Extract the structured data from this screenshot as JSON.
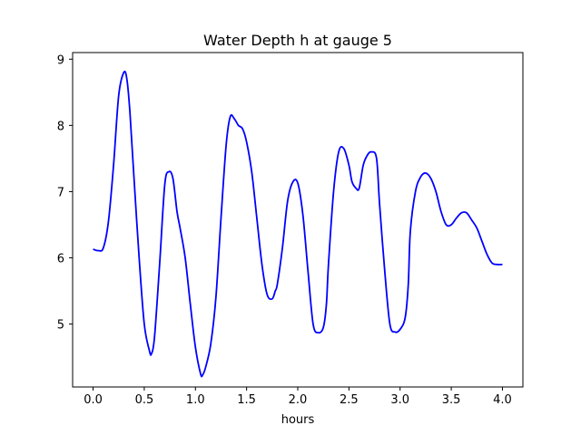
{
  "chart_data": {
    "type": "line",
    "title": "Water Depth h at gauge 5",
    "xlabel": "hours",
    "ylabel": "",
    "xlim": [
      -0.2,
      4.2
    ],
    "ylim": [
      4.05,
      9.1
    ],
    "xticks": [
      0.0,
      0.5,
      1.0,
      1.5,
      2.0,
      2.5,
      3.0,
      3.5,
      4.0
    ],
    "xtick_labels": [
      "0.0",
      "0.5",
      "1.0",
      "1.5",
      "2.0",
      "2.5",
      "3.0",
      "3.5",
      "4.0"
    ],
    "yticks": [
      5,
      6,
      7,
      8,
      9
    ],
    "ytick_labels": [
      "5",
      "6",
      "7",
      "8",
      "9"
    ],
    "grid": false,
    "series": [
      {
        "color": "#0000ff",
        "x": [
          0.0,
          0.05,
          0.1,
          0.15,
          0.2,
          0.25,
          0.3,
          0.33,
          0.36,
          0.4,
          0.45,
          0.5,
          0.55,
          0.57,
          0.6,
          0.65,
          0.7,
          0.74,
          0.78,
          0.82,
          0.85,
          0.9,
          0.95,
          1.0,
          1.05,
          1.07,
          1.1,
          1.15,
          1.2,
          1.25,
          1.3,
          1.34,
          1.38,
          1.42,
          1.46,
          1.5,
          1.55,
          1.6,
          1.65,
          1.7,
          1.75,
          1.78,
          1.8,
          1.85,
          1.9,
          1.95,
          2.0,
          2.05,
          2.1,
          2.15,
          2.2,
          2.25,
          2.28,
          2.3,
          2.35,
          2.4,
          2.45,
          2.5,
          2.53,
          2.57,
          2.6,
          2.64,
          2.68,
          2.72,
          2.77,
          2.8,
          2.85,
          2.9,
          2.95,
          3.0,
          3.05,
          3.08,
          3.1,
          3.15,
          3.2,
          3.25,
          3.3,
          3.35,
          3.4,
          3.45,
          3.5,
          3.55,
          3.6,
          3.65,
          3.7,
          3.75,
          3.8,
          3.85,
          3.9,
          3.95,
          4.0
        ],
        "y": [
          6.13,
          6.11,
          6.15,
          6.55,
          7.4,
          8.45,
          8.8,
          8.7,
          8.2,
          7.2,
          6.0,
          5.0,
          4.6,
          4.55,
          4.8,
          5.9,
          7.1,
          7.3,
          7.2,
          6.7,
          6.45,
          6.0,
          5.3,
          4.65,
          4.25,
          4.23,
          4.35,
          4.7,
          5.4,
          6.6,
          7.7,
          8.13,
          8.1,
          8.0,
          7.95,
          7.75,
          7.3,
          6.6,
          5.9,
          5.45,
          5.38,
          5.5,
          5.6,
          6.15,
          6.85,
          7.14,
          7.13,
          6.65,
          5.8,
          5.0,
          4.87,
          4.95,
          5.3,
          5.9,
          7.0,
          7.6,
          7.65,
          7.4,
          7.15,
          7.05,
          7.05,
          7.4,
          7.55,
          7.6,
          7.5,
          6.8,
          5.8,
          5.0,
          4.88,
          4.92,
          5.1,
          5.6,
          6.4,
          7.0,
          7.22,
          7.28,
          7.2,
          7.0,
          6.7,
          6.5,
          6.5,
          6.6,
          6.68,
          6.68,
          6.57,
          6.45,
          6.25,
          6.05,
          5.92,
          5.9,
          5.9
        ]
      }
    ]
  }
}
